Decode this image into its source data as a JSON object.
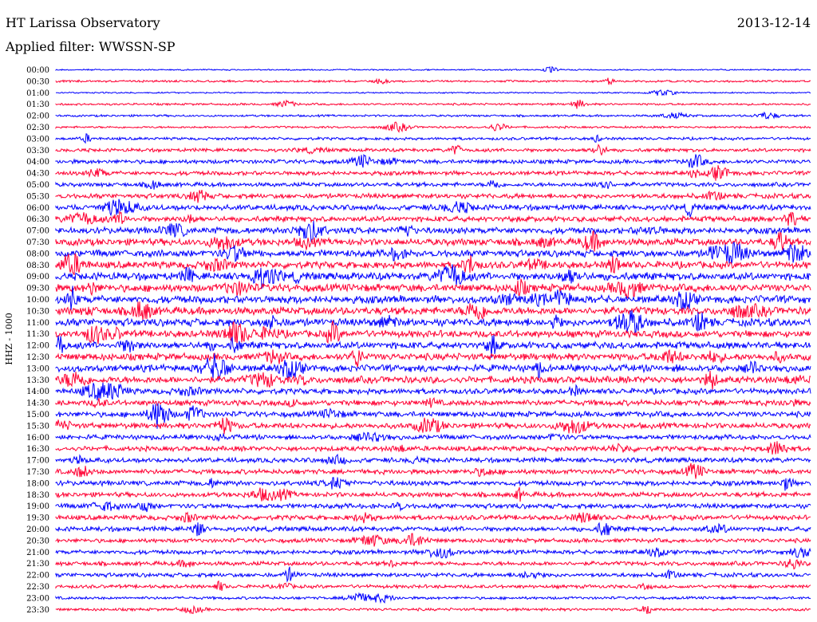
{
  "header": {
    "title": "HT Larissa Observatory",
    "date": "2013-12-14",
    "filter_label": "Applied filter: WWSSN-SP"
  },
  "chart_data": {
    "type": "line",
    "ylabel": "HHZ - 1000",
    "colors": {
      "even_row": "#0000ff",
      "odd_row": "#ff0033"
    },
    "rows": [
      "00:00",
      "00:30",
      "01:00",
      "01:30",
      "02:00",
      "02:30",
      "03:00",
      "03:30",
      "04:00",
      "04:30",
      "05:00",
      "05:30",
      "06:00",
      "06:30",
      "07:00",
      "07:30",
      "08:00",
      "08:30",
      "09:00",
      "09:30",
      "10:00",
      "10:30",
      "11:00",
      "11:30",
      "12:00",
      "12:30",
      "13:00",
      "13:30",
      "14:00",
      "14:30",
      "15:00",
      "15:30",
      "16:00",
      "16:30",
      "17:00",
      "17:30",
      "18:00",
      "18:30",
      "19:00",
      "19:30",
      "20:00",
      "20:30",
      "21:00",
      "21:30",
      "22:00",
      "22:30",
      "23:00",
      "23:30"
    ],
    "noise_level": [
      1.0,
      1.5,
      1.0,
      1.5,
      1.5,
      1.5,
      2.0,
      2.5,
      3.0,
      3.0,
      3.0,
      3.5,
      4.0,
      4.0,
      4.5,
      5.0,
      5.0,
      5.0,
      5.5,
      5.5,
      5.5,
      5.5,
      5.5,
      5.0,
      5.0,
      5.0,
      5.0,
      5.0,
      4.0,
      4.0,
      4.0,
      4.0,
      3.5,
      3.5,
      3.5,
      3.5,
      3.5,
      3.5,
      3.5,
      3.5,
      3.5,
      3.0,
      3.0,
      3.0,
      3.0,
      2.5,
      2.0,
      2.0
    ]
  }
}
